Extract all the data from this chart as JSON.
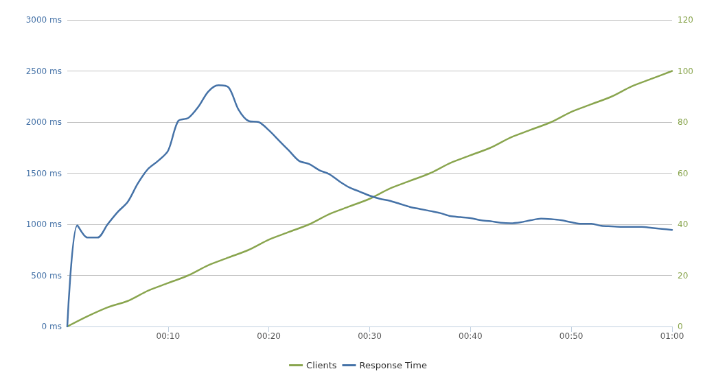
{
  "chart_data": {
    "type": "line",
    "xlim": [
      0,
      60
    ],
    "xticks": [
      {
        "value": 10,
        "label": "00:10"
      },
      {
        "value": 20,
        "label": "00:20"
      },
      {
        "value": 30,
        "label": "00:30"
      },
      {
        "value": 40,
        "label": "00:40"
      },
      {
        "value": 50,
        "label": "00:50"
      },
      {
        "value": 60,
        "label": "01:00"
      }
    ],
    "ylim": [
      0,
      3000
    ],
    "yticks": [
      {
        "value": 0,
        "label": "0 ms"
      },
      {
        "value": 500,
        "label": "500 ms"
      },
      {
        "value": 1000,
        "label": "1000 ms"
      },
      {
        "value": 1500,
        "label": "1500 ms"
      },
      {
        "value": 2000,
        "label": "2000 ms"
      },
      {
        "value": 2500,
        "label": "2500 ms"
      },
      {
        "value": 3000,
        "label": "3000 ms"
      }
    ],
    "y2lim": [
      0,
      120
    ],
    "y2ticks": [
      0,
      20,
      40,
      60,
      80,
      100,
      120
    ],
    "grid": "y",
    "legend": "bottom",
    "marker": "none",
    "line_style": "solid",
    "series": [
      {
        "name": "Clients",
        "color": "#89a54e",
        "axis": "y2",
        "x": [
          0,
          2,
          4,
          6,
          8,
          10,
          12,
          14,
          16,
          18,
          20,
          22,
          24,
          26,
          28,
          30,
          32,
          34,
          36,
          38,
          40,
          42,
          44,
          46,
          48,
          50,
          52,
          54,
          56,
          58,
          60
        ],
        "values": [
          0,
          4,
          7.5,
          10,
          14,
          17,
          20,
          24,
          27,
          30,
          34,
          37,
          40,
          44,
          47,
          50,
          54,
          57,
          60,
          64,
          67,
          70,
          74,
          77,
          80,
          84,
          87,
          90,
          94,
          97,
          100
        ]
      },
      {
        "name": "Response Time",
        "color": "#4572a7",
        "x": [
          0,
          1,
          2,
          3,
          4,
          5,
          6,
          7,
          8,
          9,
          10,
          11,
          12,
          13,
          14,
          15,
          16,
          17,
          18,
          19,
          20,
          21,
          22,
          23,
          24,
          25,
          26,
          27,
          28,
          29,
          30,
          31,
          32,
          33,
          34,
          35,
          36,
          37,
          38,
          39,
          40,
          41,
          42,
          43,
          44,
          45,
          46,
          47,
          48,
          49,
          50,
          51,
          52,
          53,
          54,
          55,
          56,
          57,
          58,
          59,
          60
        ],
        "values": [
          0,
          990,
          870,
          870,
          1000,
          1120,
          1220,
          1400,
          1540,
          1620,
          1720,
          2010,
          2040,
          2150,
          2300,
          2360,
          2340,
          2120,
          2010,
          2000,
          1920,
          1820,
          1720,
          1620,
          1590,
          1530,
          1490,
          1420,
          1360,
          1320,
          1280,
          1250,
          1230,
          1200,
          1170,
          1150,
          1130,
          1110,
          1080,
          1070,
          1060,
          1040,
          1030,
          1015,
          1010,
          1020,
          1040,
          1055,
          1050,
          1040,
          1020,
          1005,
          1005,
          985,
          980,
          975,
          975,
          975,
          965,
          955,
          945
        ]
      }
    ]
  }
}
